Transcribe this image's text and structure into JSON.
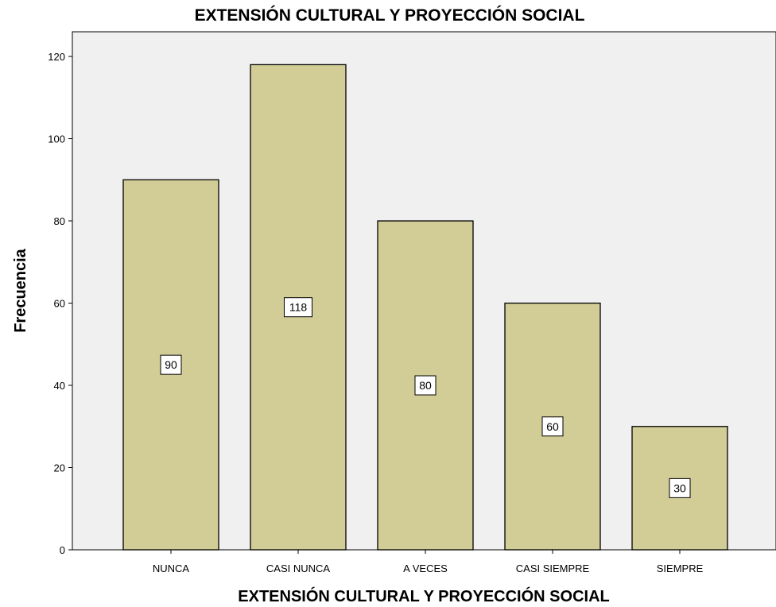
{
  "chart_data": {
    "type": "bar",
    "title": "EXTENSIÓN CULTURAL Y PROYECCIÓN SOCIAL",
    "xlabel": "EXTENSIÓN CULTURAL Y PROYECCIÓN SOCIAL",
    "ylabel": "Frecuencia",
    "categories": [
      "NUNCA",
      "CASI NUNCA",
      "A VECES",
      "CASI SIEMPRE",
      "SIEMPRE"
    ],
    "values": [
      90,
      118,
      80,
      60,
      30
    ],
    "data_labels": [
      "90",
      "118",
      "80",
      "60",
      "30"
    ],
    "ylim": [
      0,
      126
    ],
    "yticks": [
      0,
      20,
      40,
      60,
      80,
      100,
      120
    ],
    "grid": false,
    "legend": "none",
    "colors": {
      "bar_fill": "#d2cc96",
      "bar_stroke": "#000000",
      "plot_background": "#f0f0f0",
      "label_box_fill": "#ffffff"
    }
  }
}
